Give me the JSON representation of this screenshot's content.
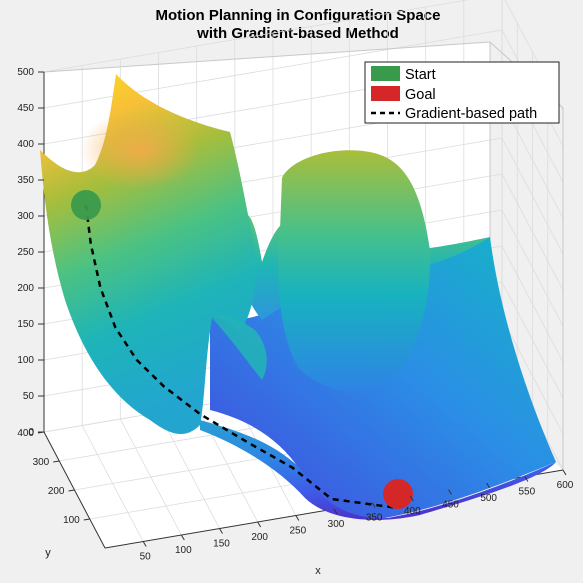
{
  "chart_data": {
    "type": "surface3d",
    "title_lines": [
      "Motion Planning in Configuration Space",
      "with Gradient-based Method"
    ],
    "xlabel": "x",
    "ylabel": "y",
    "zlabel": "",
    "x_ticks": [
      "50",
      "100",
      "150",
      "200",
      "250",
      "300",
      "350",
      "400",
      "450",
      "500",
      "550",
      "600"
    ],
    "y_ticks": [
      "100",
      "200",
      "300",
      "400"
    ],
    "z_ticks": [
      "0",
      "50",
      "100",
      "150",
      "200",
      "250",
      "300",
      "350",
      "400",
      "450",
      "500"
    ],
    "xlim": [
      0,
      600
    ],
    "ylim": [
      0,
      400
    ],
    "zlim": [
      0,
      500
    ],
    "grid": true,
    "colormap": "parula",
    "legend_placement": "top-right",
    "legend": [
      {
        "label": "Start",
        "color": "#3a9a4c",
        "kind": "patch"
      },
      {
        "label": "Goal",
        "color": "#d62728",
        "kind": "patch"
      },
      {
        "label": "Gradient-based path",
        "color": "#000000",
        "kind": "dashed-line"
      }
    ],
    "start": {
      "x": 60,
      "y": 300,
      "z": 320
    },
    "goal": {
      "x": 380,
      "y": 140,
      "z": 0
    },
    "path": [
      {
        "x": 60,
        "y": 300,
        "z": 320
      },
      {
        "x": 68,
        "y": 285,
        "z": 250
      },
      {
        "x": 85,
        "y": 265,
        "z": 170
      },
      {
        "x": 110,
        "y": 245,
        "z": 110
      },
      {
        "x": 140,
        "y": 225,
        "z": 70
      },
      {
        "x": 175,
        "y": 205,
        "z": 45
      },
      {
        "x": 215,
        "y": 190,
        "z": 35
      },
      {
        "x": 255,
        "y": 175,
        "z": 25
      },
      {
        "x": 295,
        "y": 160,
        "z": 15
      },
      {
        "x": 335,
        "y": 148,
        "z": 6
      },
      {
        "x": 380,
        "y": 140,
        "z": 0
      }
    ]
  }
}
